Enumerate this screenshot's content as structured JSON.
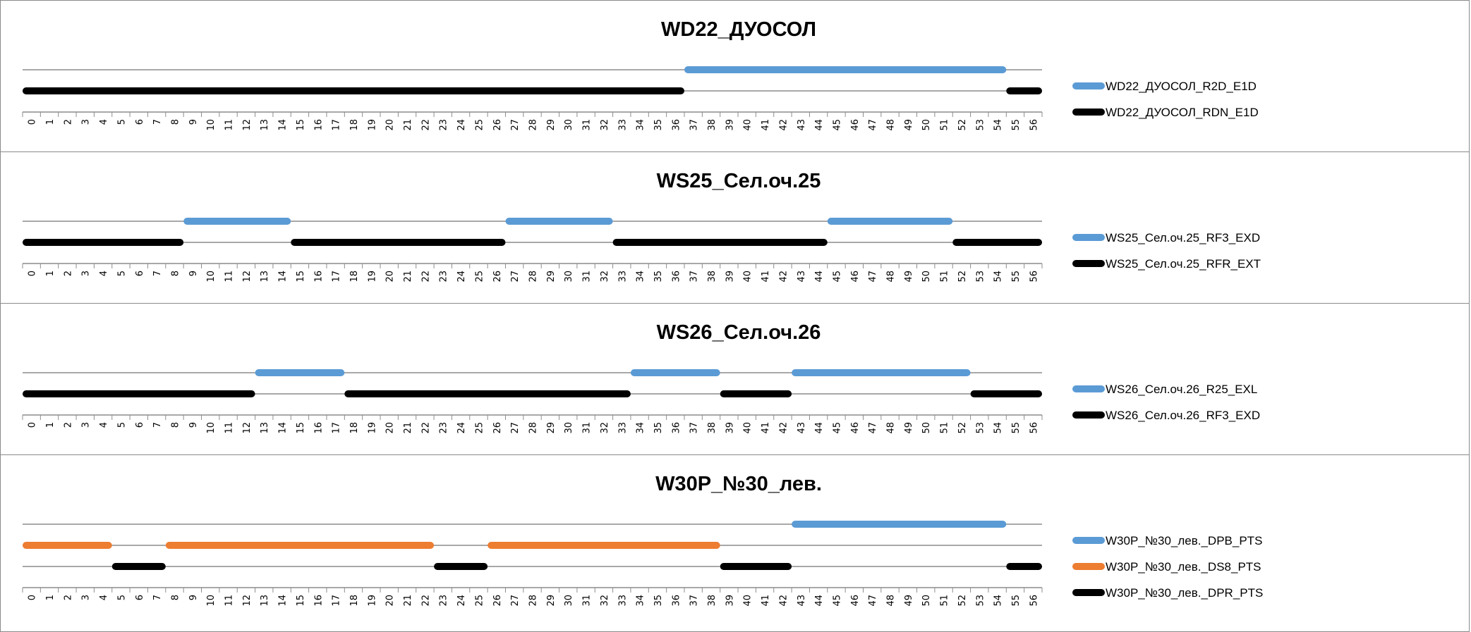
{
  "chart_data": [
    {
      "type": "line",
      "title": "WD22_ДУОСОЛ",
      "categories": [
        0,
        1,
        2,
        3,
        4,
        5,
        6,
        7,
        8,
        9,
        10,
        11,
        12,
        13,
        14,
        15,
        16,
        17,
        18,
        19,
        20,
        21,
        22,
        23,
        24,
        25,
        26,
        27,
        28,
        29,
        30,
        31,
        32,
        33,
        34,
        35,
        36,
        37,
        38,
        39,
        40,
        41,
        42,
        43,
        44,
        45,
        46,
        47,
        48,
        49,
        50,
        51,
        52,
        53,
        54,
        55,
        56
      ],
      "legend_position": "right",
      "series": [
        {
          "name": "WD22_ДУОСОЛ_R2D_E1D",
          "color": "#5b9bd5",
          "segments": [
            [
              36.5,
              54.5
            ]
          ]
        },
        {
          "name": "WD22_ДУОСОЛ_RDN_E1D",
          "color": "#000000",
          "segments": [
            [
              -0.5,
              36.5
            ],
            [
              54.5,
              56.5
            ]
          ]
        }
      ]
    },
    {
      "type": "line",
      "title": "WS25_Сел.оч.25",
      "categories": [
        0,
        1,
        2,
        3,
        4,
        5,
        6,
        7,
        8,
        9,
        10,
        11,
        12,
        13,
        14,
        15,
        16,
        17,
        18,
        19,
        20,
        21,
        22,
        23,
        24,
        25,
        26,
        27,
        28,
        29,
        30,
        31,
        32,
        33,
        34,
        35,
        36,
        37,
        38,
        39,
        40,
        41,
        42,
        43,
        44,
        45,
        46,
        47,
        48,
        49,
        50,
        51,
        52,
        53,
        54,
        55,
        56
      ],
      "legend_position": "right",
      "series": [
        {
          "name": "WS25_Сел.оч.25_RF3_EXD",
          "color": "#5b9bd5",
          "segments": [
            [
              8.5,
              14.5
            ],
            [
              26.5,
              32.5
            ],
            [
              44.5,
              51.5
            ]
          ]
        },
        {
          "name": "WS25_Сел.оч.25_RFR_EXT",
          "color": "#000000",
          "segments": [
            [
              -0.5,
              8.5
            ],
            [
              14.5,
              26.5
            ],
            [
              32.5,
              44.5
            ],
            [
              51.5,
              56.5
            ]
          ]
        }
      ]
    },
    {
      "type": "line",
      "title": "WS26_Сел.оч.26",
      "categories": [
        0,
        1,
        2,
        3,
        4,
        5,
        6,
        7,
        8,
        9,
        10,
        11,
        12,
        13,
        14,
        15,
        16,
        17,
        18,
        19,
        20,
        21,
        22,
        23,
        24,
        25,
        26,
        27,
        28,
        29,
        30,
        31,
        32,
        33,
        34,
        35,
        36,
        37,
        38,
        39,
        40,
        41,
        42,
        43,
        44,
        45,
        46,
        47,
        48,
        49,
        50,
        51,
        52,
        53,
        54,
        55,
        56
      ],
      "legend_position": "right",
      "series": [
        {
          "name": "WS26_Сел.оч.26_R25_EXL",
          "color": "#5b9bd5",
          "segments": [
            [
              12.5,
              17.5
            ],
            [
              33.5,
              38.5
            ],
            [
              42.5,
              52.5
            ]
          ]
        },
        {
          "name": "WS26_Сел.оч.26_RF3_EXD",
          "color": "#000000",
          "segments": [
            [
              -0.5,
              12.5
            ],
            [
              17.5,
              33.5
            ],
            [
              38.5,
              42.5
            ],
            [
              52.5,
              56.5
            ]
          ]
        }
      ]
    },
    {
      "type": "line",
      "title": "W30P_№30_лев.",
      "categories": [
        0,
        1,
        2,
        3,
        4,
        5,
        6,
        7,
        8,
        9,
        10,
        11,
        12,
        13,
        14,
        15,
        16,
        17,
        18,
        19,
        20,
        21,
        22,
        23,
        24,
        25,
        26,
        27,
        28,
        29,
        30,
        31,
        32,
        33,
        34,
        35,
        36,
        37,
        38,
        39,
        40,
        41,
        42,
        43,
        44,
        45,
        46,
        47,
        48,
        49,
        50,
        51,
        52,
        53,
        54,
        55,
        56
      ],
      "legend_position": "right",
      "series": [
        {
          "name": "W30P_№30_лев._DPB_PTS",
          "color": "#5b9bd5",
          "segments": [
            [
              42.5,
              54.5
            ]
          ]
        },
        {
          "name": "W30P_№30_лев._DS8_PTS",
          "color": "#ed7d31",
          "segments": [
            [
              -0.5,
              4.5
            ],
            [
              7.5,
              22.5
            ],
            [
              25.5,
              38.5
            ]
          ]
        },
        {
          "name": "W30P_№30_лев._DPR_PTS",
          "color": "#000000",
          "segments": [
            [
              4.5,
              7.5
            ],
            [
              22.5,
              25.5
            ],
            [
              38.5,
              42.5
            ],
            [
              54.5,
              56.5
            ]
          ]
        }
      ]
    }
  ]
}
